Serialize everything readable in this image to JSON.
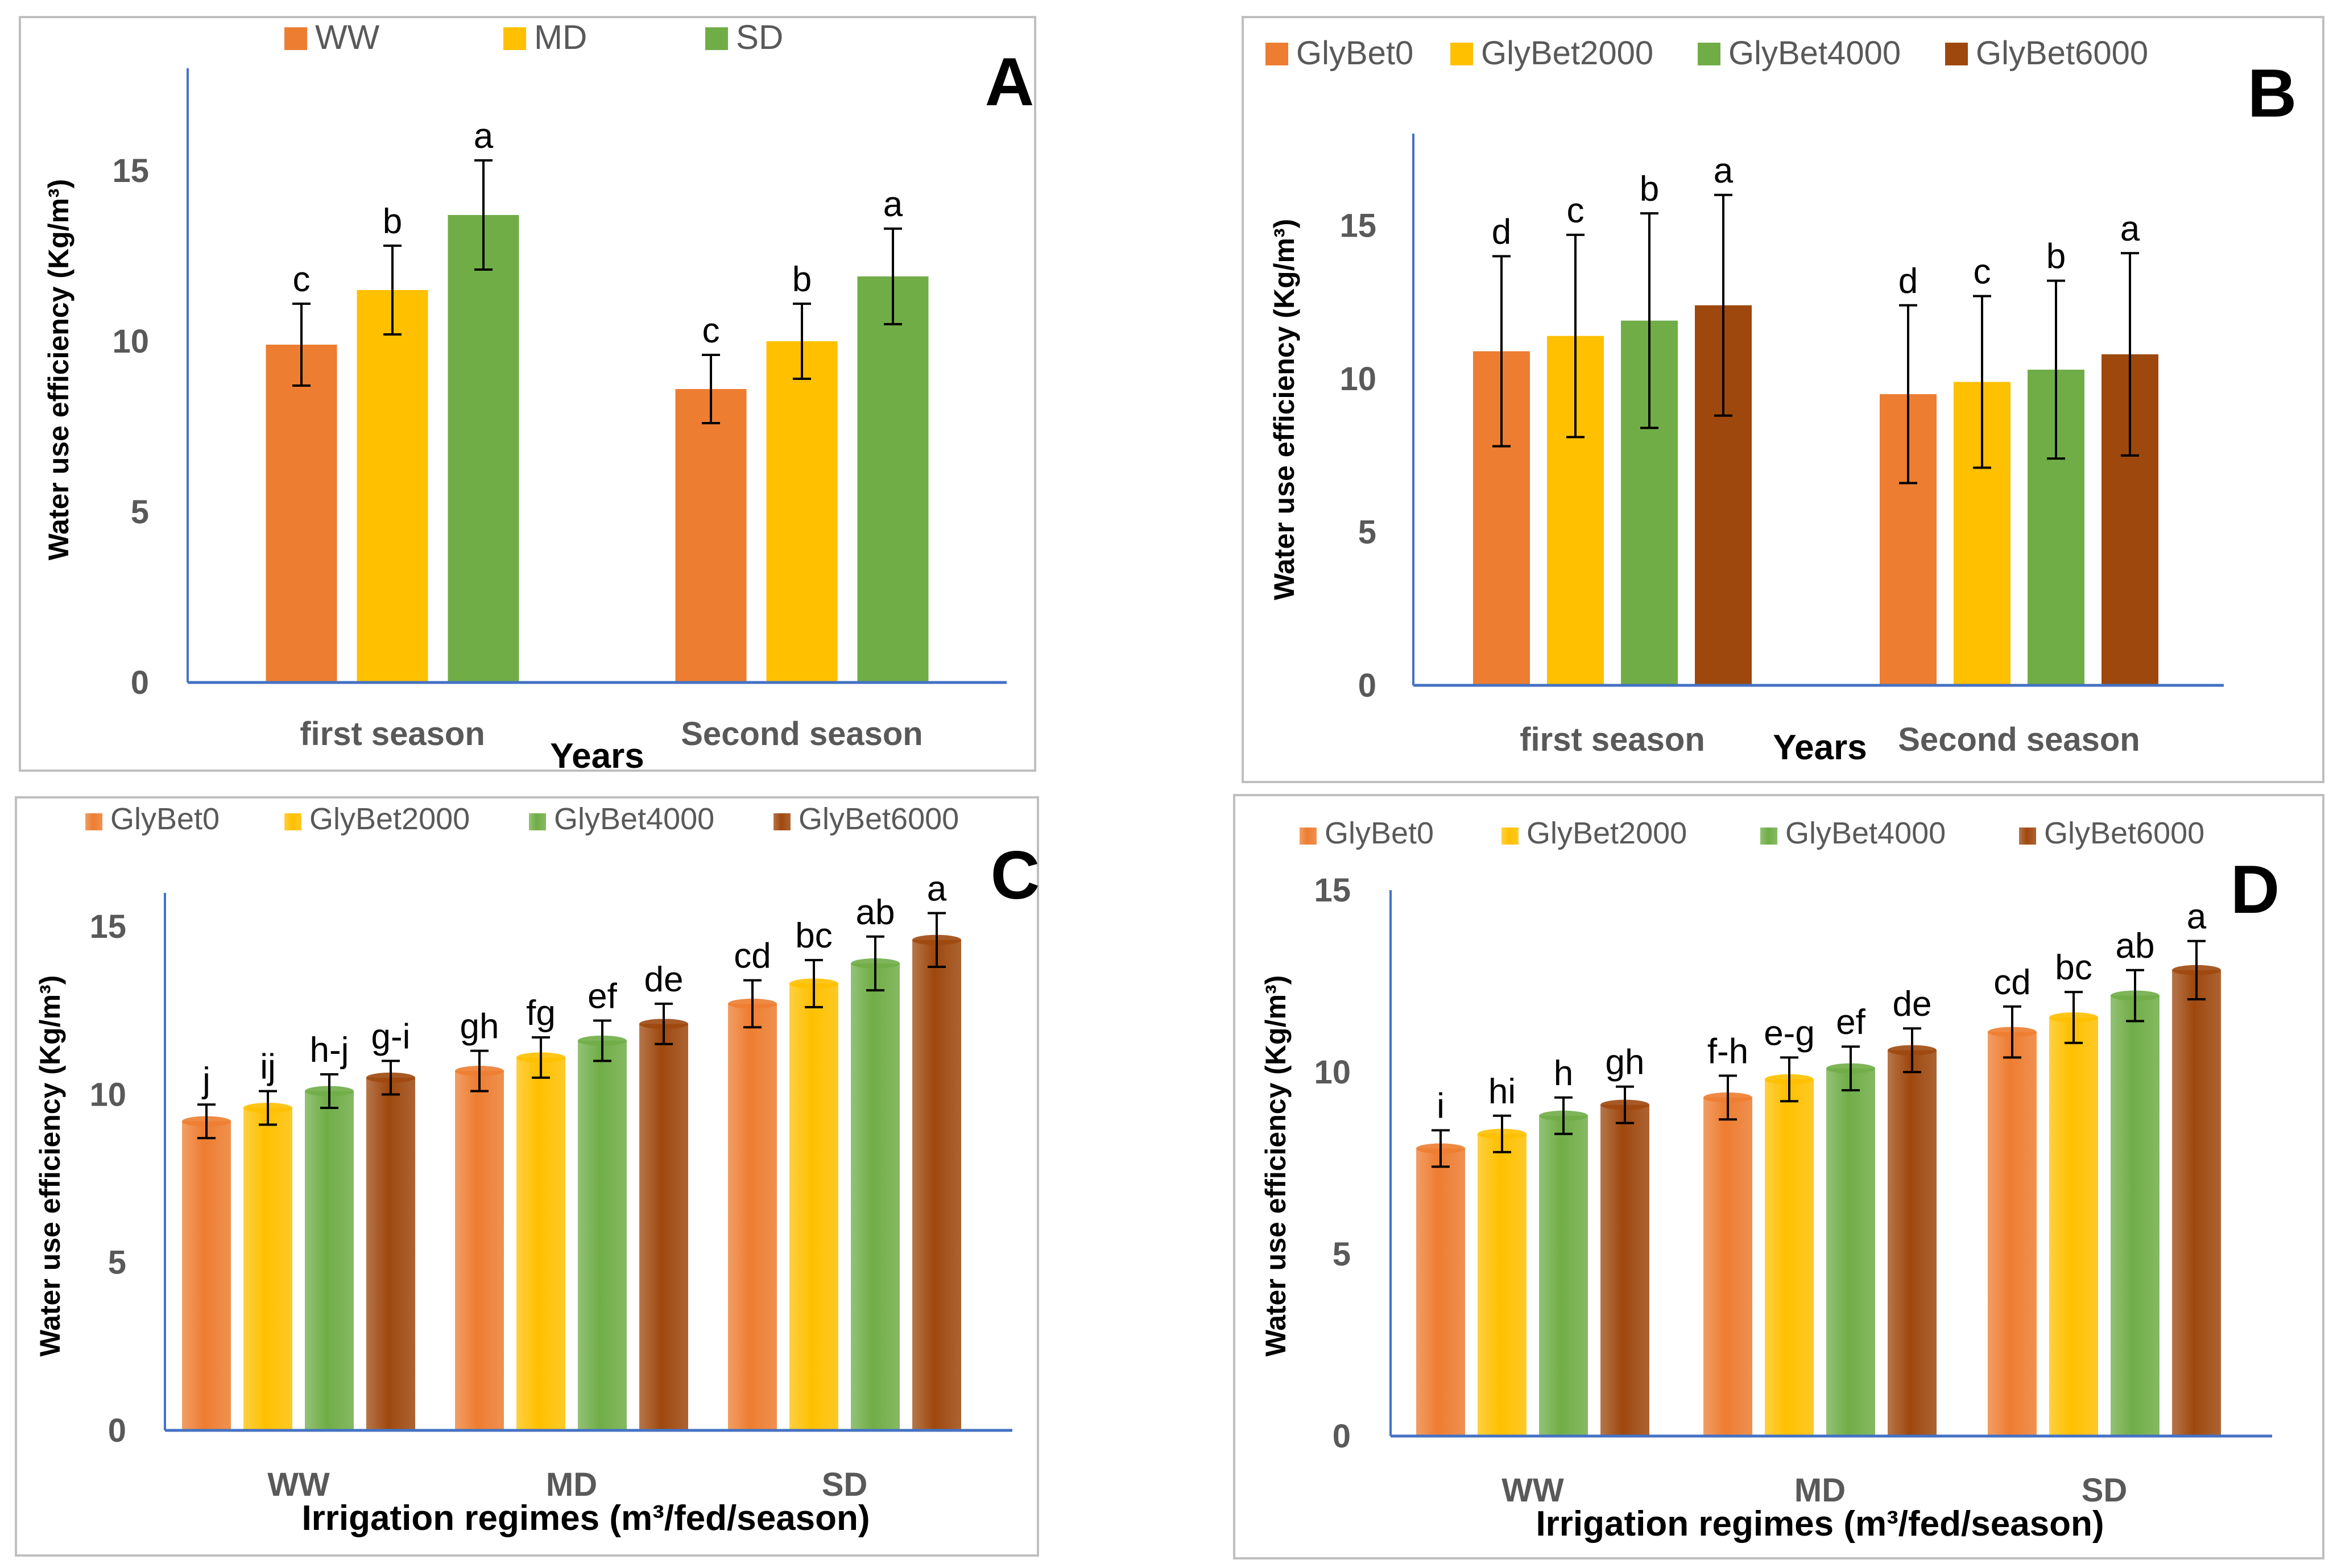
{
  "colors": {
    "orange": "#ED7D31",
    "yellow": "#FFC000",
    "green": "#70AD47",
    "brown": "#9E480E",
    "axis": "#4472C4",
    "frame": "#BFBFBF",
    "tick_text": "#595959",
    "title_text": "#000000"
  },
  "chart_data": [
    {
      "panel_label": "A",
      "type": "bar",
      "title": "",
      "xlabel": "Years",
      "ylabel": "Water use efficiency  (Kg/m³)",
      "ylim": [
        0,
        18
      ],
      "yticks": [
        0,
        5,
        10,
        15
      ],
      "categories": [
        "first season",
        "Second season"
      ],
      "legend_position": "top",
      "series": [
        {
          "name": "WW",
          "color": "#ED7D31",
          "values": [
            9.9,
            8.6
          ],
          "errors": [
            1.2,
            1.0
          ],
          "letters": [
            "c",
            "c"
          ]
        },
        {
          "name": "MD",
          "color": "#FFC000",
          "values": [
            11.5,
            10.0
          ],
          "errors": [
            1.3,
            1.1
          ],
          "letters": [
            "b",
            "b"
          ]
        },
        {
          "name": "SD",
          "color": "#70AD47",
          "values": [
            13.7,
            11.9
          ],
          "errors": [
            1.6,
            1.4
          ],
          "letters": [
            "a",
            "a"
          ]
        }
      ]
    },
    {
      "panel_label": "B",
      "type": "bar",
      "title": "",
      "xlabel": "Years",
      "ylabel": "Water use efficiency  (Kg/m³)",
      "ylim": [
        0,
        18
      ],
      "yticks": [
        0,
        5,
        10,
        15
      ],
      "categories": [
        "first season",
        "Second season"
      ],
      "legend_position": "top",
      "series": [
        {
          "name": "GlyBet0",
          "color": "#ED7D31",
          "values": [
            10.9,
            9.5
          ],
          "errors": [
            3.1,
            2.9
          ],
          "letters": [
            "d",
            "d"
          ]
        },
        {
          "name": "GlyBet2000",
          "color": "#FFC000",
          "values": [
            11.4,
            9.9
          ],
          "errors": [
            3.3,
            2.8
          ],
          "letters": [
            "c",
            "c"
          ]
        },
        {
          "name": "GlyBet4000",
          "color": "#70AD47",
          "values": [
            11.9,
            10.3
          ],
          "errors": [
            3.5,
            2.9
          ],
          "letters": [
            "b",
            "b"
          ]
        },
        {
          "name": "GlyBet6000",
          "color": "#9E480E",
          "values": [
            12.4,
            10.8
          ],
          "errors": [
            3.6,
            3.3
          ],
          "letters": [
            "a",
            "a"
          ]
        }
      ]
    },
    {
      "panel_label": "C",
      "type": "bar",
      "title": "",
      "xlabel": "Irrigation regimes (m³/fed/season)",
      "ylabel": "Water use efficiency (Kg/m³)",
      "ylim": [
        0,
        16
      ],
      "yticks": [
        0,
        5,
        10,
        15
      ],
      "categories": [
        "WW",
        "MD",
        "SD"
      ],
      "legend_position": "top",
      "series": [
        {
          "name": "GlyBet0",
          "color": "#ED7D31",
          "values": [
            9.2,
            10.7,
            12.7
          ],
          "errors": [
            0.5,
            0.6,
            0.7
          ],
          "letters": [
            "j",
            "gh",
            "cd"
          ]
        },
        {
          "name": "GlyBet2000",
          "color": "#FFC000",
          "values": [
            9.6,
            11.1,
            13.3
          ],
          "errors": [
            0.5,
            0.6,
            0.7
          ],
          "letters": [
            "ij",
            "fg",
            "bc"
          ]
        },
        {
          "name": "GlyBet4000",
          "color": "#70AD47",
          "values": [
            10.1,
            11.6,
            13.9
          ],
          "errors": [
            0.5,
            0.6,
            0.8
          ],
          "letters": [
            "h-j",
            "ef",
            "ab"
          ]
        },
        {
          "name": "GlyBet6000",
          "color": "#9E480E",
          "values": [
            10.5,
            12.1,
            14.6
          ],
          "errors": [
            0.5,
            0.6,
            0.8
          ],
          "letters": [
            "g-i",
            "de",
            "a"
          ]
        }
      ]
    },
    {
      "panel_label": "D",
      "type": "bar",
      "title": "",
      "xlabel": "Irrigation regimes (m³/fed/season)",
      "ylabel": "Water use efficiency  (Kg/m³)",
      "ylim": [
        0,
        15
      ],
      "yticks": [
        0,
        5,
        10,
        15
      ],
      "categories": [
        "WW",
        "MD",
        "SD"
      ],
      "legend_position": "top",
      "series": [
        {
          "name": "GlyBet0",
          "color": "#ED7D31",
          "values": [
            7.9,
            9.3,
            11.1
          ],
          "errors": [
            0.5,
            0.6,
            0.7
          ],
          "letters": [
            "i",
            "f-h",
            "cd"
          ]
        },
        {
          "name": "GlyBet2000",
          "color": "#FFC000",
          "values": [
            8.3,
            9.8,
            11.5
          ],
          "errors": [
            0.5,
            0.6,
            0.7
          ],
          "letters": [
            "hi",
            "e-g",
            "bc"
          ]
        },
        {
          "name": "GlyBet4000",
          "color": "#70AD47",
          "values": [
            8.8,
            10.1,
            12.1
          ],
          "errors": [
            0.5,
            0.6,
            0.7
          ],
          "letters": [
            "h",
            "ef",
            "ab"
          ]
        },
        {
          "name": "GlyBet6000",
          "color": "#9E480E",
          "values": [
            9.1,
            10.6,
            12.8
          ],
          "errors": [
            0.5,
            0.6,
            0.8
          ],
          "letters": [
            "gh",
            "de",
            "a"
          ]
        }
      ]
    }
  ]
}
